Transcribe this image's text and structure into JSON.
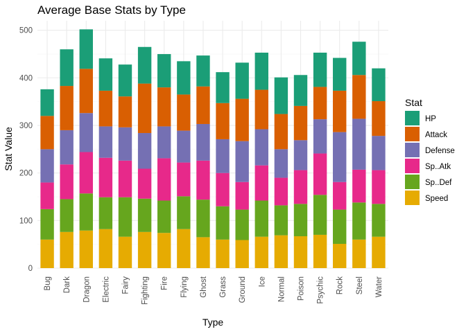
{
  "chart_data": {
    "type": "bar",
    "stacked": true,
    "title": "Average Base Stats by Type",
    "xlabel": "Type",
    "ylabel": "Stat Value",
    "ylim": [
      0,
      520
    ],
    "yticks": [
      0,
      100,
      200,
      300,
      400,
      500
    ],
    "grid": true,
    "legend_position": "right",
    "legend_title": "Stat",
    "categories": [
      "Bug",
      "Dark",
      "Dragon",
      "Electric",
      "Fairy",
      "Fighting",
      "Fire",
      "Flying",
      "Ghost",
      "Grass",
      "Ground",
      "Ice",
      "Normal",
      "Poison",
      "Psychic",
      "Rock",
      "Steel",
      "Water"
    ],
    "series": [
      {
        "name": "HP",
        "color": "#1b9e77",
        "values": [
          56,
          77,
          83,
          68,
          67,
          77,
          70,
          70,
          65,
          65,
          76,
          78,
          77,
          65,
          72,
          69,
          70,
          69
        ]
      },
      {
        "name": "Attack",
        "color": "#d95f02",
        "values": [
          70,
          93,
          93,
          75,
          65,
          104,
          82,
          76,
          79,
          76,
          89,
          83,
          74,
          72,
          68,
          87,
          92,
          73
        ]
      },
      {
        "name": "Defense",
        "color": "#7570b3",
        "values": [
          70,
          72,
          82,
          66,
          70,
          75,
          67,
          67,
          77,
          71,
          86,
          76,
          60,
          63,
          72,
          105,
          107,
          72
        ]
      },
      {
        "name": "Sp..Atk",
        "color": "#e7298a",
        "values": [
          56,
          73,
          87,
          83,
          77,
          63,
          89,
          71,
          82,
          70,
          58,
          74,
          58,
          71,
          87,
          58,
          69,
          71
        ]
      },
      {
        "name": "Sp..Def",
        "color": "#66a61e",
        "values": [
          64,
          69,
          78,
          67,
          83,
          70,
          68,
          69,
          79,
          70,
          64,
          76,
          63,
          68,
          84,
          72,
          78,
          69
        ]
      },
      {
        "name": "Speed",
        "color": "#e6ab02",
        "values": [
          60,
          76,
          79,
          82,
          66,
          76,
          74,
          82,
          65,
          60,
          59,
          66,
          69,
          67,
          70,
          51,
          60,
          66
        ]
      }
    ]
  }
}
